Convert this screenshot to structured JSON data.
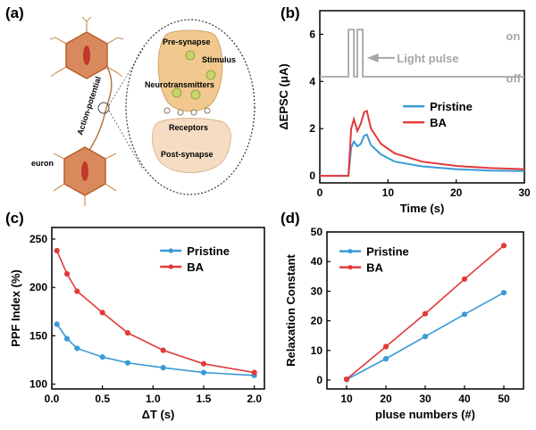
{
  "panels": {
    "a": {
      "label": "(a)",
      "text": {
        "pre_synapse": "Pre-synapse",
        "stimulus": "Stimulus",
        "neurotransmitters": "Neurotransmitters",
        "receptors": "Receptors",
        "post_synapse": "Post-synapse",
        "action_potential": "Action-potential",
        "neuron": "euron"
      }
    },
    "b": {
      "label": "(b)"
    },
    "c": {
      "label": "(c)"
    },
    "d": {
      "label": "(d)"
    }
  },
  "colors": {
    "pristine": "#3a9ad6",
    "ba": "#e23a3a",
    "pulse": "#a6a6a6",
    "neuron_fill": "#d98a5c",
    "neuron_stroke": "#b8602f",
    "nucleus": "#c0392b",
    "synapse_top": "#f1c98e",
    "synapse_bottom": "#f5dcc3",
    "vesicle": "#c7d36b"
  },
  "chart_data": [
    {
      "id": "b",
      "type": "line",
      "xlabel": "Time (s)",
      "ylabel": "ΔEPSC (μA)",
      "xlim": [
        0,
        30
      ],
      "ylim": [
        -0.3,
        7.0
      ],
      "xticks": [
        0,
        10,
        20,
        30
      ],
      "yticks": [
        0,
        2,
        4,
        6
      ],
      "legend_position": "center-right",
      "annotations": {
        "on": "on",
        "off": "off",
        "light_pulse": "Light pulse"
      },
      "pulse": {
        "name": "Light pulse",
        "x": [
          0,
          4.2,
          4.2,
          5.0,
          5.0,
          5.5,
          5.5,
          6.3,
          6.3,
          30
        ],
        "y": [
          4.2,
          4.2,
          6.2,
          6.2,
          4.2,
          4.2,
          6.2,
          6.2,
          4.2,
          4.2
        ]
      },
      "series": [
        {
          "name": "Pristine",
          "x": [
            0,
            4.2,
            4.6,
            5.0,
            5.5,
            6.0,
            6.5,
            6.9,
            7.5,
            9,
            11,
            15,
            20,
            25,
            30
          ],
          "y": [
            0,
            0,
            1.2,
            1.45,
            1.25,
            1.35,
            1.7,
            1.75,
            1.3,
            0.9,
            0.6,
            0.4,
            0.28,
            0.22,
            0.2
          ]
        },
        {
          "name": "BA",
          "x": [
            0,
            4.2,
            4.6,
            5.0,
            5.5,
            6.0,
            6.5,
            6.9,
            7.5,
            9,
            11,
            15,
            20,
            25,
            30
          ],
          "y": [
            0,
            0,
            2.0,
            2.4,
            1.9,
            2.2,
            2.7,
            2.75,
            2.0,
            1.35,
            0.95,
            0.6,
            0.42,
            0.33,
            0.28
          ]
        }
      ]
    },
    {
      "id": "c",
      "type": "line",
      "xlabel": "ΔT (s)",
      "ylabel": "PPF Index (%)",
      "xlim": [
        0,
        2.1
      ],
      "ylim": [
        95,
        262
      ],
      "xticks": [
        0.0,
        0.5,
        1.0,
        1.5,
        2.0
      ],
      "yticks": [
        100,
        150,
        200,
        250
      ],
      "legend_position": "top-right",
      "series": [
        {
          "name": "Pristine",
          "x": [
            0.05,
            0.15,
            0.25,
            0.5,
            0.75,
            1.1,
            1.5,
            2.0
          ],
          "y": [
            162,
            147,
            137,
            128,
            122,
            117,
            112,
            109
          ]
        },
        {
          "name": "BA",
          "x": [
            0.05,
            0.15,
            0.25,
            0.5,
            0.75,
            1.1,
            1.5,
            2.0
          ],
          "y": [
            238,
            214,
            196,
            174,
            153,
            135,
            121,
            112
          ]
        }
      ]
    },
    {
      "id": "d",
      "type": "line",
      "xlabel": "pluse numbers (#)",
      "ylabel": "Relaxation Constant",
      "xlim": [
        5,
        55
      ],
      "ylim": [
        -3,
        50
      ],
      "xticks": [
        10,
        20,
        30,
        40,
        50
      ],
      "yticks": [
        0,
        10,
        20,
        30,
        40,
        50
      ],
      "legend_position": "top-left",
      "series": [
        {
          "name": "Pristine",
          "x": [
            10,
            20,
            30,
            40,
            50
          ],
          "y": [
            0.2,
            7.2,
            14.7,
            22.2,
            29.5
          ]
        },
        {
          "name": "BA",
          "x": [
            10,
            20,
            30,
            40,
            50
          ],
          "y": [
            0.3,
            11.3,
            22.4,
            34.1,
            45.4
          ]
        }
      ]
    }
  ]
}
